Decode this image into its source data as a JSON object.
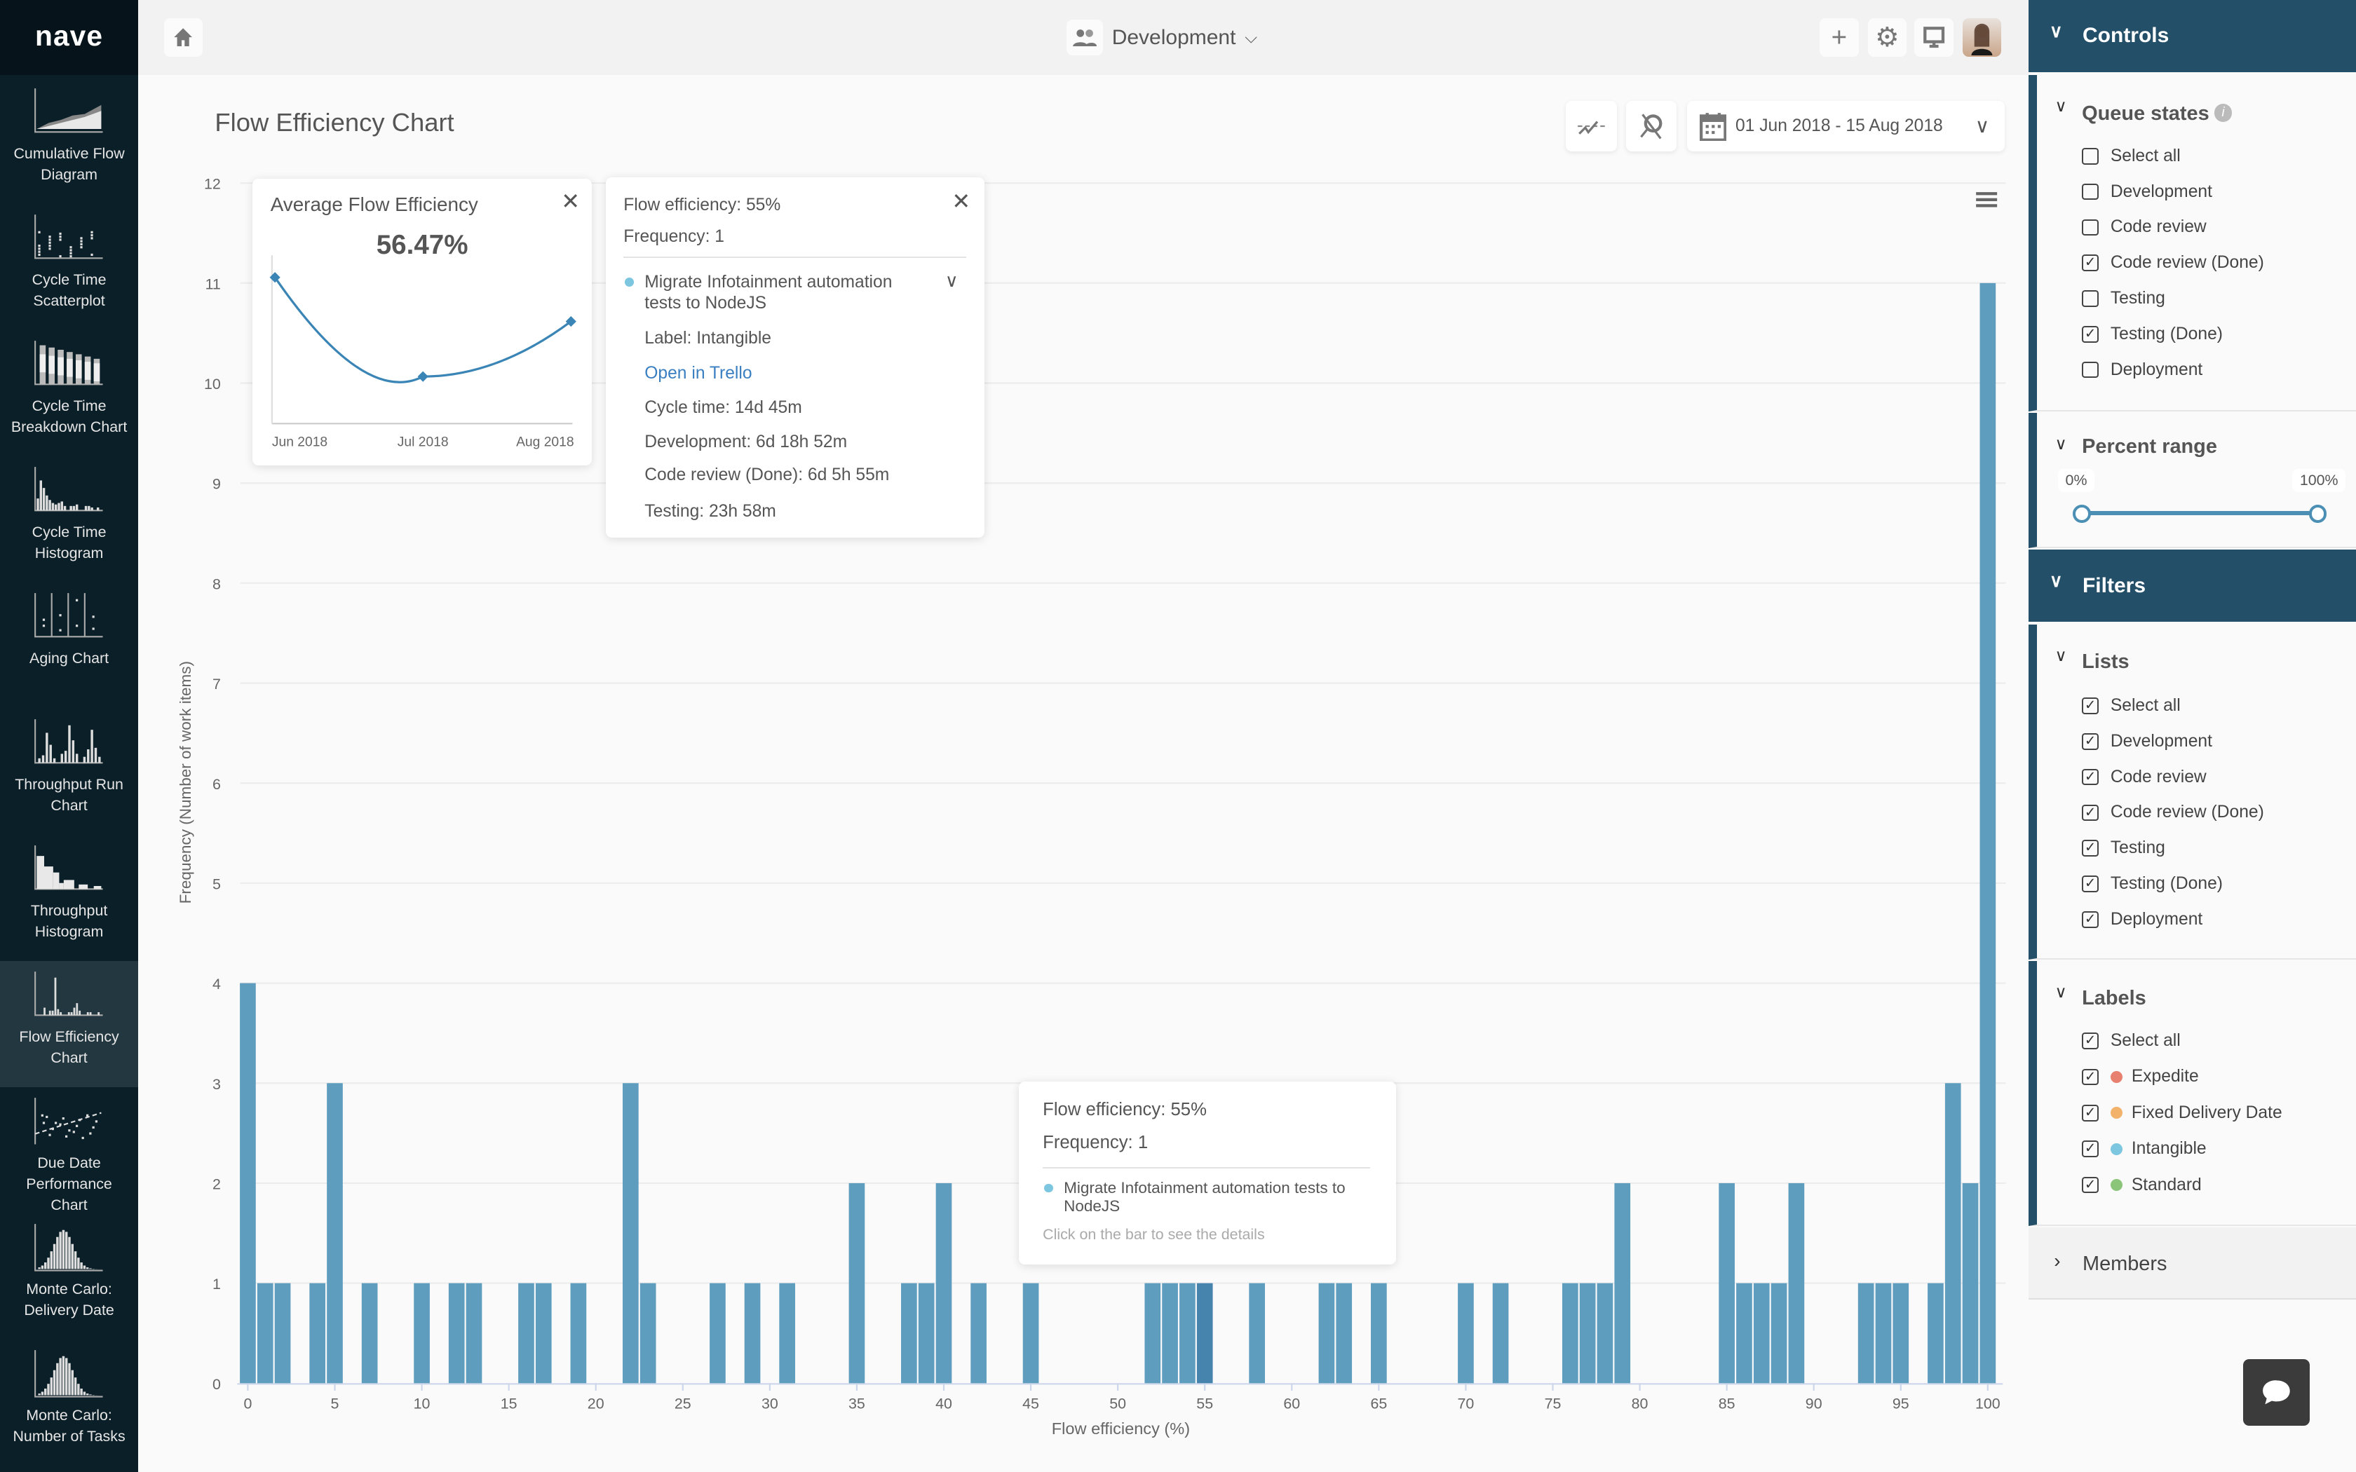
{
  "app": {
    "logo": "nave",
    "project": "Development",
    "page_title": "Flow Efficiency Chart",
    "date_range": "01 Jun 2018 - 15 Aug 2018"
  },
  "nav": [
    {
      "label1": "Cumulative Flow",
      "label2": "Diagram",
      "label3": "",
      "icon": "cfd-thumbnail-icon"
    },
    {
      "label1": "Cycle Time",
      "label2": "Scatterplot",
      "label3": "",
      "icon": "scatterplot-thumbnail-icon"
    },
    {
      "label1": "Cycle Time",
      "label2": "Breakdown Chart",
      "label3": "",
      "icon": "breakdown-thumbnail-icon"
    },
    {
      "label1": "Cycle Time",
      "label2": "Histogram",
      "label3": "",
      "icon": "histogram-thumbnail-icon"
    },
    {
      "label1": "Aging Chart",
      "label2": "",
      "label3": "",
      "icon": "aging-thumbnail-icon"
    },
    {
      "label1": "Throughput Run",
      "label2": "Chart",
      "label3": "",
      "icon": "run-chart-thumbnail-icon"
    },
    {
      "label1": "Throughput",
      "label2": "Histogram",
      "label3": "",
      "icon": "throughput-histogram-thumbnail-icon"
    },
    {
      "label1": "Flow Efficiency",
      "label2": "Chart",
      "label3": "",
      "icon": "flow-efficiency-thumbnail-icon",
      "active": true
    },
    {
      "label1": "Due Date",
      "label2": "Performance",
      "label3": "Chart",
      "icon": "due-date-thumbnail-icon"
    },
    {
      "label1": "Monte Carlo:",
      "label2": "Delivery Date",
      "label3": "",
      "icon": "monte-carlo-thumbnail-icon"
    },
    {
      "label1": "Monte Carlo:",
      "label2": "Number of Tasks",
      "label3": "",
      "icon": "monte-carlo-thumbnail-icon"
    }
  ],
  "avg_popup": {
    "title": "Average Flow Efficiency",
    "value": "56.47%"
  },
  "detail_popup": {
    "line1": "Flow efficiency: 55%",
    "line2": "Frequency: 1",
    "item": "Migrate Infotainment automation tests to NodeJS",
    "label": "Label: Intangible",
    "link": "Open in Trello",
    "cycle": "Cycle time: 14d 45m",
    "dev": "Development: 6d 18h 52m",
    "cr": "Code review (Done): 6d 5h 55m",
    "test": "Testing: 23h 58m"
  },
  "hover_tooltip": {
    "line1": "Flow efficiency: 55%",
    "line2": "Frequency: 1",
    "item": "Migrate Infotainment automation tests to NodeJS",
    "hint": "Click on the bar to see the details"
  },
  "panel": {
    "controls": "Controls",
    "queue_title": "Queue states",
    "queue": [
      {
        "label": "Select all",
        "checked": false
      },
      {
        "label": "Development",
        "checked": false
      },
      {
        "label": "Code review",
        "checked": false
      },
      {
        "label": "Code review (Done)",
        "checked": true
      },
      {
        "label": "Testing",
        "checked": false
      },
      {
        "label": "Testing (Done)",
        "checked": true
      },
      {
        "label": "Deployment",
        "checked": false
      }
    ],
    "percent_title": "Percent range",
    "range_min": "0%",
    "range_max": "100%",
    "range_values": [
      0,
      100
    ],
    "filters": "Filters",
    "lists_title": "Lists",
    "lists": [
      {
        "label": "Select all",
        "checked": true
      },
      {
        "label": "Development",
        "checked": true
      },
      {
        "label": "Code review",
        "checked": true
      },
      {
        "label": "Code review (Done)",
        "checked": true
      },
      {
        "label": "Testing",
        "checked": true
      },
      {
        "label": "Testing (Done)",
        "checked": true
      },
      {
        "label": "Deployment",
        "checked": true
      }
    ],
    "labels_title": "Labels",
    "labels": [
      {
        "label": "Select all",
        "checked": true,
        "color": ""
      },
      {
        "label": "Expedite",
        "checked": true,
        "color": "#e8806f"
      },
      {
        "label": "Fixed Delivery Date",
        "checked": true,
        "color": "#f2b26b"
      },
      {
        "label": "Intangible",
        "checked": true,
        "color": "#7cc6e0"
      },
      {
        "label": "Standard",
        "checked": true,
        "color": "#8bc57a"
      }
    ],
    "members_title": "Members"
  },
  "colors": {
    "bar": "#5f9dbf",
    "bar_active": "#4683ad",
    "nav_bg": "#0b1f28",
    "panel_head": "#234f68"
  },
  "chart_data": [
    {
      "type": "bar",
      "title": "Flow Efficiency Chart",
      "xlabel": "Flow efficiency (%)",
      "ylabel": "Frequency (Number of work items)",
      "xlim": [
        0,
        100
      ],
      "ylim": [
        0,
        12
      ],
      "xticks": [
        0,
        5,
        10,
        15,
        20,
        25,
        30,
        35,
        40,
        45,
        50,
        55,
        60,
        65,
        70,
        75,
        80,
        85,
        90,
        95,
        100
      ],
      "yticks": [
        0,
        1,
        2,
        3,
        4,
        5,
        6,
        7,
        8,
        9,
        10,
        11,
        12
      ],
      "x": [
        0,
        1,
        2,
        4,
        5,
        7,
        10,
        12,
        13,
        16,
        17,
        19,
        22,
        23,
        27,
        29,
        31,
        35,
        38,
        39,
        40,
        42,
        45,
        52,
        53,
        54,
        55,
        58,
        62,
        63,
        65,
        70,
        72,
        76,
        77,
        78,
        79,
        85,
        86,
        87,
        88,
        89,
        93,
        94,
        95,
        97,
        98,
        99,
        100
      ],
      "values": [
        4,
        1,
        1,
        1,
        3,
        1,
        1,
        1,
        1,
        1,
        1,
        1,
        3,
        1,
        1,
        1,
        1,
        2,
        1,
        1,
        2,
        1,
        1,
        1,
        1,
        1,
        1,
        1,
        1,
        1,
        1,
        1,
        1,
        1,
        1,
        1,
        2,
        2,
        1,
        1,
        1,
        2,
        1,
        1,
        1,
        1,
        3,
        2,
        11
      ],
      "highlighted_x": 55,
      "grid": true
    },
    {
      "type": "line",
      "title": "Average Flow Efficiency",
      "categories": [
        "Jun 2018",
        "Jul 2018",
        "Aug 2018"
      ],
      "values": [
        66,
        48,
        58
      ]
    }
  ]
}
